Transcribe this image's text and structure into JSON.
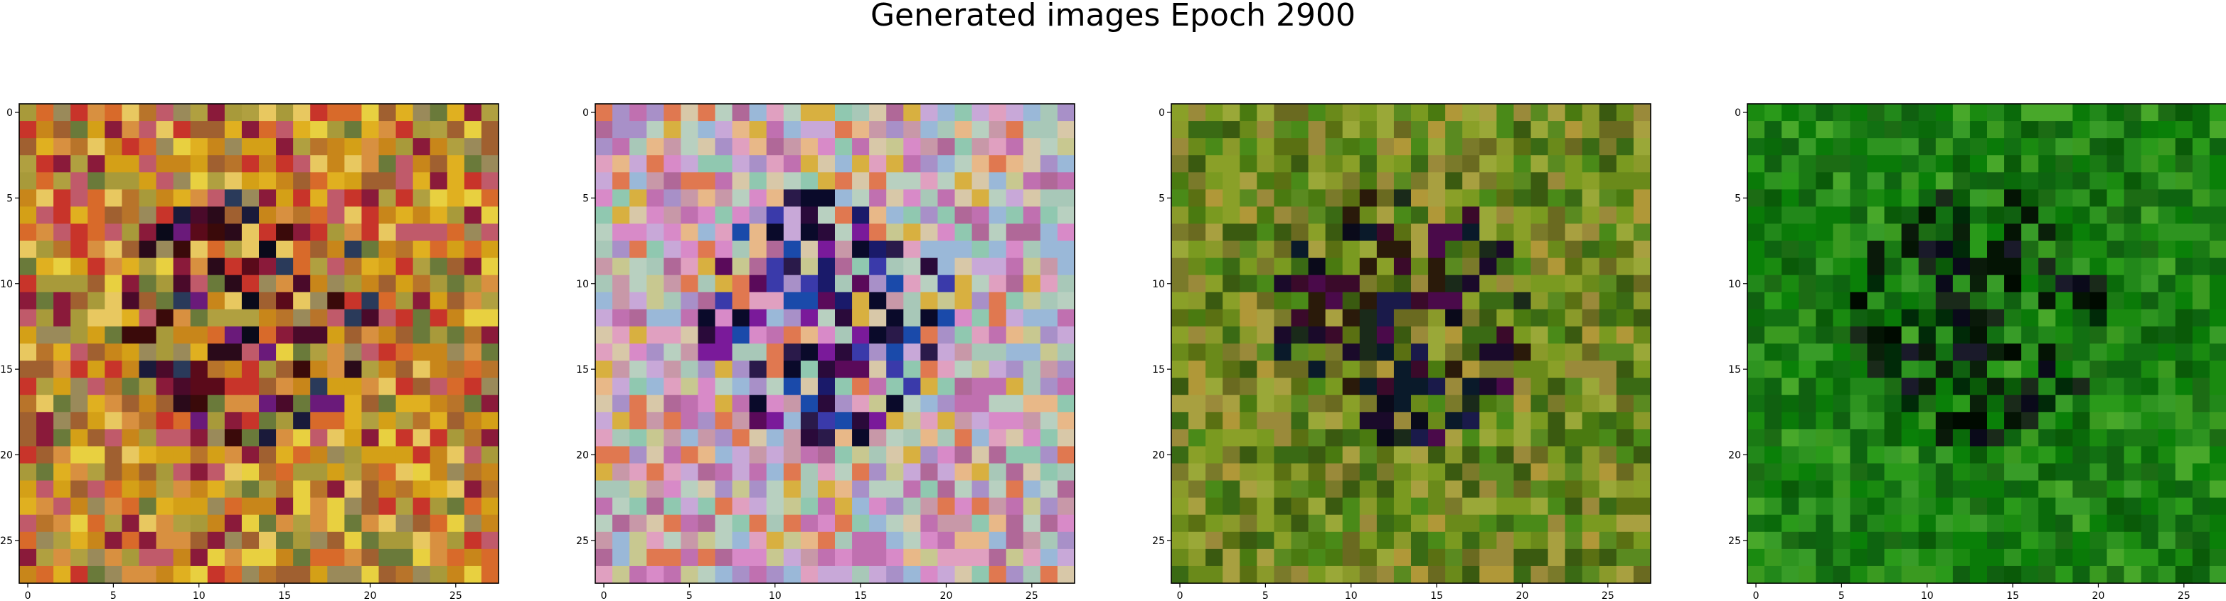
{
  "title": "Generated images Epoch 2900",
  "chart_data": [
    {
      "type": "heatmap",
      "palette": "warm",
      "grid": false,
      "xticks": [
        "0",
        "5",
        "10",
        "15",
        "20",
        "25"
      ],
      "yticks": [
        "0",
        "5",
        "10",
        "15",
        "20",
        "25"
      ],
      "xlim": [
        -0.5,
        27.5
      ],
      "ylim": [
        27.5,
        -0.5
      ]
    },
    {
      "type": "heatmap",
      "palette": "pastel",
      "grid": false,
      "xticks": [
        "0",
        "5",
        "10",
        "15",
        "20",
        "25"
      ],
      "yticks": [
        "0",
        "5",
        "10",
        "15",
        "20",
        "25"
      ],
      "xlim": [
        -0.5,
        27.5
      ],
      "ylim": [
        27.5,
        -0.5
      ]
    },
    {
      "type": "heatmap",
      "palette": "olive",
      "grid": false,
      "xticks": [
        "0",
        "5",
        "10",
        "15",
        "20",
        "25"
      ],
      "yticks": [
        "0",
        "5",
        "10",
        "15",
        "20",
        "25"
      ],
      "xlim": [
        -0.5,
        27.5
      ],
      "ylim": [
        27.5,
        -0.5
      ]
    },
    {
      "type": "heatmap",
      "palette": "green",
      "grid": false,
      "xticks": [
        "0",
        "5",
        "10",
        "15",
        "20",
        "25"
      ],
      "yticks": [
        "0",
        "5",
        "10",
        "15",
        "20",
        "25"
      ],
      "xlim": [
        -0.5,
        27.5
      ],
      "ylim": [
        27.5,
        -0.5
      ]
    }
  ]
}
